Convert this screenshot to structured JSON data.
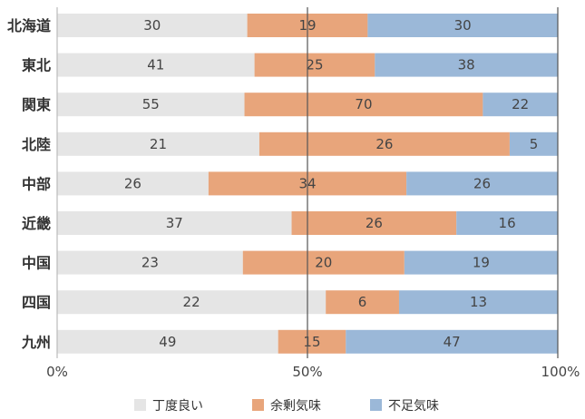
{
  "chart_data": {
    "type": "bar",
    "orientation": "horizontal",
    "stacked": "percent",
    "categories": [
      "北海道",
      "東北",
      "関東",
      "北陸",
      "中部",
      "近畿",
      "中国",
      "四国",
      "九州"
    ],
    "series": [
      {
        "name": "丁度良い",
        "color": "#e5e5e5",
        "values": [
          30,
          41,
          55,
          21,
          26,
          37,
          23,
          22,
          49
        ]
      },
      {
        "name": "余剰気味",
        "color": "#e8a57b",
        "values": [
          19,
          25,
          70,
          26,
          34,
          26,
          20,
          6,
          15
        ]
      },
      {
        "name": "不足気味",
        "color": "#9bb8d8",
        "values": [
          30,
          38,
          22,
          5,
          26,
          16,
          19,
          13,
          47
        ]
      }
    ],
    "xticks": [
      "0%",
      "50%",
      "100%"
    ],
    "xlim": [
      0,
      100
    ],
    "legend": "bottom"
  }
}
